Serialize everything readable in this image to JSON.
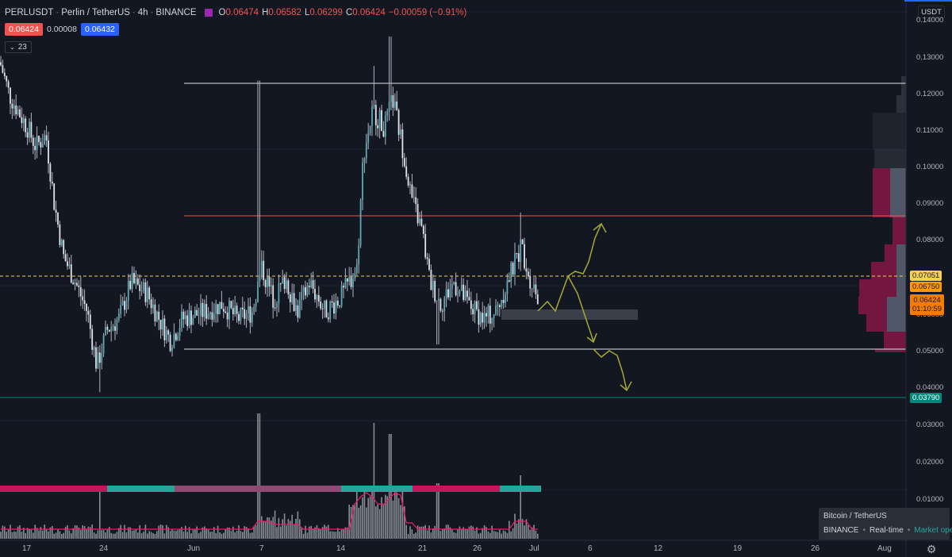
{
  "legend": {
    "symbol": "PERLUSDT",
    "name": "Perlin / TetherUS",
    "interval": "4h",
    "exchange": "BINANCE",
    "open": "0.06474",
    "high": "0.06582",
    "low": "0.06299",
    "close": "0.06424",
    "change": "−0.00059 (−0.91%)",
    "bid": "0.06424",
    "spread": "0.00008",
    "ask": "0.06432",
    "indicator_count": "23",
    "symbol_color": "#9c27b0"
  },
  "price_axis": {
    "currency": "USDT",
    "ticks": [
      "0.14000",
      "0.13000",
      "0.12000",
      "0.11000",
      "0.10000",
      "0.09000",
      "0.08000",
      "0.06000",
      "0.05000",
      "0.04000",
      "0.03000",
      "0.02000",
      "0.01000"
    ]
  },
  "price_tags": {
    "level_1": {
      "text": "0.07051",
      "bg": "#f5d14d",
      "fg": "#131722"
    },
    "level_2": {
      "text": "0.06750",
      "bg": "#ff9800",
      "fg": "#131722"
    },
    "last": {
      "text": "0.06424",
      "countdown": "01:10:59",
      "bg": "#f57c00",
      "fg": "#131722"
    },
    "support": {
      "text": "0.03790",
      "bg": "#00897b",
      "fg": "#ffffff"
    }
  },
  "time_axis": {
    "labels": [
      "17",
      "24",
      "Jun",
      "7",
      "14",
      "21",
      "26",
      "Jul",
      "6",
      "12",
      "19",
      "26",
      "Aug"
    ]
  },
  "info_box": {
    "title": "Bitcoin / TetherUS",
    "exchange": "BINANCE",
    "mode": "Real-time",
    "status": "Market open"
  },
  "colors": {
    "background": "#131722",
    "candle": "#b2b5be",
    "candle_body": "#5fa8b5",
    "resistance_line": "#e0e3eb",
    "mid_line": "#ef5350",
    "dashed_line": "#f5d14d",
    "drawing": "#a8a832",
    "heat_red": "#c2185b",
    "heat_teal": "#26a69a",
    "volume_ma": "#e91e63"
  },
  "chart_data": {
    "type": "candlestick",
    "symbol": "PERLUSDT",
    "interval": "4h",
    "ylim": [
      0,
      0.14
    ],
    "x_labels": [
      "17",
      "24",
      "Jun",
      "7",
      "14",
      "21",
      "26",
      "Jul",
      "6",
      "12",
      "19",
      "26",
      "Aug"
    ],
    "price_path": [
      {
        "x": "17",
        "y": 0.127
      },
      {
        "x": "24",
        "y": 0.053
      },
      {
        "x": "Jun",
        "y": 0.052
      },
      {
        "x": "7",
        "y": 0.065
      },
      {
        "x": "14",
        "y": 0.069
      },
      {
        "x": "17",
        "y": 0.117
      },
      {
        "x": "21",
        "y": 0.068
      },
      {
        "x": "26",
        "y": 0.058
      },
      {
        "x": "Jul",
        "y": 0.06424
      }
    ],
    "key_levels": [
      0.123,
      0.087,
      0.07051,
      0.0675,
      0.051,
      0.0379
    ],
    "grid": true
  }
}
